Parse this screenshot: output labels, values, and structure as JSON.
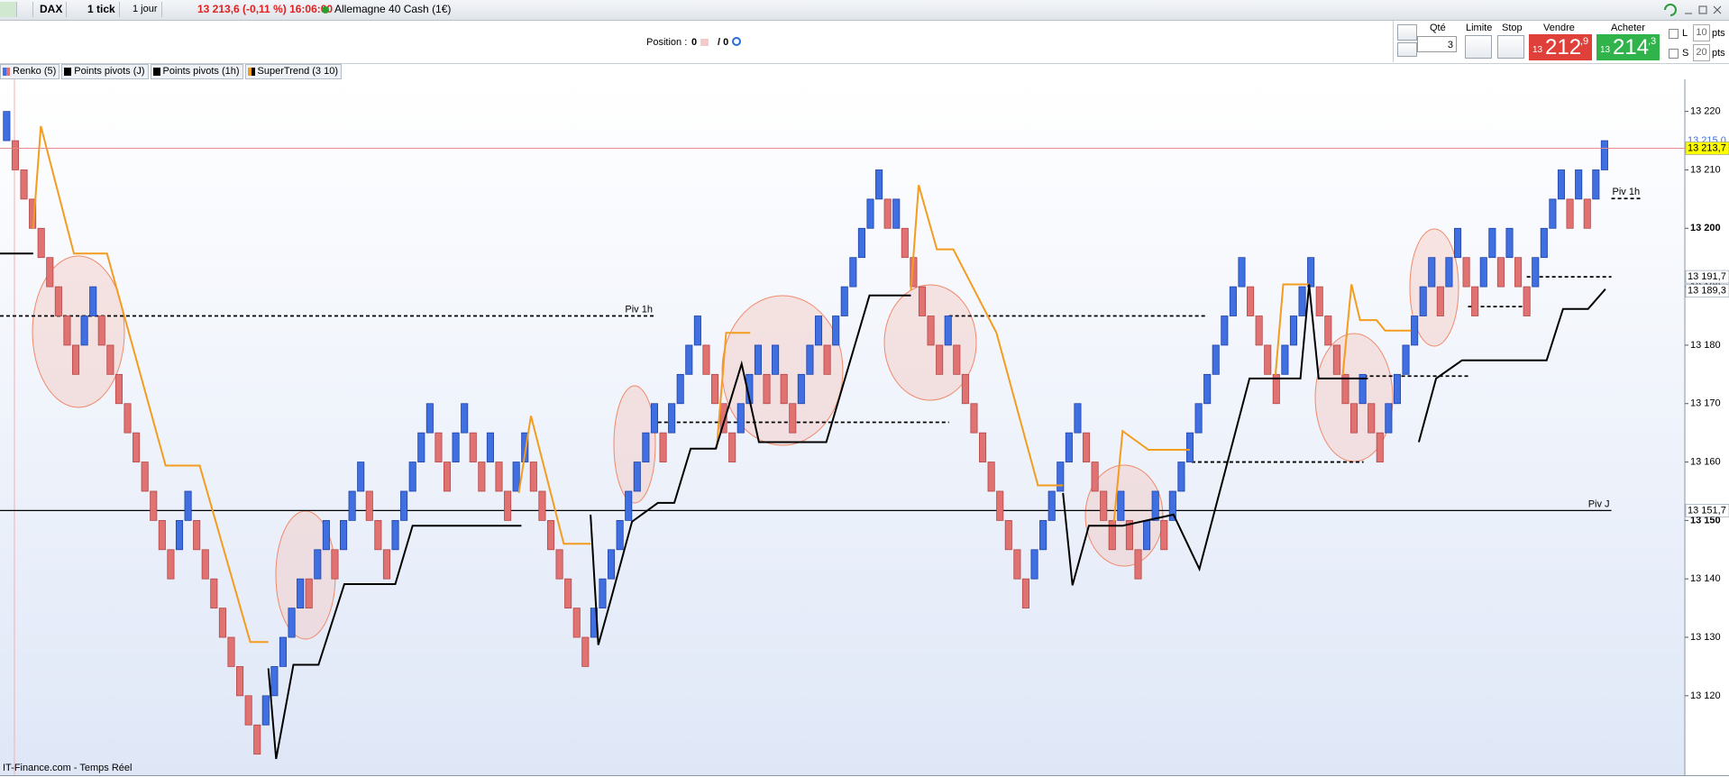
{
  "toolbar": {
    "symbol": "DAX",
    "interval": "1 tick",
    "period": "1 jour",
    "quote": "13 213,6 (-0,11 %) 16:06:00",
    "instrument": "Allemagne 40 Cash (1€)"
  },
  "position": {
    "label": "Position :",
    "value": "0",
    "total": "/ 0"
  },
  "order_panel": {
    "qty_label": "Qté",
    "qty": "3",
    "limit_label": "Limite",
    "stop_label": "Stop",
    "sell_label": "Vendre",
    "sell_prefix": "13",
    "sell_main": "212",
    "sell_decimal": ",9",
    "buy_label": "Acheter",
    "buy_prefix": "13",
    "buy_main": "214",
    "buy_decimal": ",3",
    "l_label": "L",
    "l_value": "10",
    "s_label": "S",
    "s_value": "20",
    "pts": "pts"
  },
  "indicators": [
    "Renko (5)",
    "Points pivots (J)",
    "Points pivots (1h)",
    "SuperTrend (3 10)"
  ],
  "footer": "IT-Finance.com - Temps Réel",
  "chart_data": {
    "type": "renko",
    "up_color": "#3f6fe0",
    "down_color": "#e07272",
    "open": [
      13215,
      13215,
      13210,
      13205,
      13200,
      13195,
      13190,
      13185,
      13180,
      13180,
      13185,
      13185,
      13180,
      13175,
      13170,
      13165,
      13160,
      13155,
      13150,
      13145,
      13145,
      13150,
      13150,
      13145,
      13140,
      13135,
      13130,
      13125,
      13120,
      13115,
      13115,
      13120,
      13125,
      13130,
      13135,
      13140,
      13140,
      13145,
      13145,
      13145,
      13150,
      13155,
      13155,
      13150,
      13145,
      13145,
      13150,
      13155,
      13160,
      13165,
      13165,
      13160,
      13160,
      13165,
      13165,
      13160,
      13160,
      13160,
      13155,
      13155,
      13160,
      13160,
      13155,
      13150,
      13145,
      13140,
      13135,
      13130,
      13130,
      13135,
      13140,
      13145,
      13150,
      13155,
      13160,
      13165,
      13165,
      13165,
      13170,
      13175,
      13180,
      13180,
      13175,
      13170,
      13165,
      13165,
      13170,
      13175,
      13175,
      13175,
      13175,
      13170,
      13170,
      13175,
      13180,
      13180,
      13180,
      13185,
      13190,
      13195,
      13200,
      13205,
      13205,
      13200,
      13200,
      13195,
      13190,
      13185,
      13180,
      13180,
      13180,
      13175,
      13170,
      13165,
      13160,
      13155,
      13150,
      13145,
      13140,
      13140,
      13145,
      13150,
      13155,
      13160,
      13165,
      13165,
      13160,
      13155,
      13150,
      13150,
      13150,
      13145,
      13145,
      13150,
      13150,
      13150,
      13155,
      13160,
      13165,
      13170,
      13175,
      13180,
      13185,
      13190,
      13190,
      13185,
      13180,
      13175,
      13175,
      13180,
      13185,
      13190,
      13190,
      13185,
      13180,
      13175,
      13170,
      13170,
      13170,
      13165,
      13165,
      13170,
      13175,
      13180,
      13185,
      13190,
      13190,
      13190,
      13195,
      13195,
      13190,
      13190,
      13195,
      13195,
      13195,
      13195,
      13190,
      13190,
      13195,
      13200,
      13205,
      13205,
      13205,
      13205,
      13205,
      13210
    ],
    "close": [
      13220,
      13210,
      13205,
      13200,
      13195,
      13190,
      13185,
      13180,
      13175,
      13185,
      13190,
      13180,
      13175,
      13170,
      13165,
      13160,
      13155,
      13150,
      13145,
      13140,
      13150,
      13155,
      13145,
      13140,
      13135,
      13130,
      13125,
      13120,
      13115,
      13110,
      13120,
      13125,
      13130,
      13135,
      13140,
      13135,
      13145,
      13150,
      13140,
      13150,
      13155,
      13160,
      13150,
      13145,
      13140,
      13150,
      13155,
      13160,
      13165,
      13170,
      13160,
      13155,
      13165,
      13170,
      13160,
      13155,
      13165,
      13155,
      13150,
      13160,
      13165,
      13155,
      13150,
      13145,
      13140,
      13135,
      13130,
      13125,
      13135,
      13140,
      13145,
      13150,
      13155,
      13160,
      13165,
      13170,
      13160,
      13170,
      13175,
      13180,
      13185,
      13175,
      13170,
      13165,
      13160,
      13170,
      13175,
      13180,
      13170,
      13180,
      13170,
      13165,
      13175,
      13180,
      13185,
      13175,
      13185,
      13190,
      13195,
      13200,
      13205,
      13210,
      13200,
      13205,
      13195,
      13190,
      13185,
      13180,
      13175,
      13185,
      13175,
      13170,
      13165,
      13160,
      13155,
      13150,
      13145,
      13140,
      13135,
      13145,
      13150,
      13155,
      13160,
      13165,
      13170,
      13160,
      13155,
      13150,
      13145,
      13155,
      13145,
      13140,
      13150,
      13155,
      13145,
      13155,
      13160,
      13165,
      13170,
      13175,
      13180,
      13185,
      13190,
      13195,
      13185,
      13180,
      13175,
      13170,
      13180,
      13185,
      13190,
      13195,
      13185,
      13180,
      13175,
      13170,
      13165,
      13175,
      13165,
      13160,
      13170,
      13175,
      13180,
      13185,
      13190,
      13195,
      13185,
      13195,
      13200,
      13190,
      13185,
      13195,
      13200,
      13190,
      13200,
      13190,
      13185,
      13195,
      13200,
      13205,
      13210,
      13200,
      13210,
      13200,
      13210,
      13215
    ],
    "xlim": [
      -0.77,
      194.3
    ],
    "ylim": [
      13106.4,
      13225.5
    ],
    "yticks": [
      {
        "value": 13120,
        "label": "13 120"
      },
      {
        "value": 13130,
        "label": "13 130"
      },
      {
        "value": 13140,
        "label": "13 140"
      },
      {
        "value": 13150,
        "label": "13 150"
      },
      {
        "value": 13160,
        "label": "13 160"
      },
      {
        "value": 13170,
        "label": "13 170"
      },
      {
        "value": 13180,
        "label": "13 180"
      },
      {
        "value": 13190,
        "label": "13 190"
      },
      {
        "value": 13200,
        "label": "13 200"
      },
      {
        "value": 13210,
        "label": "13 210"
      },
      {
        "value": 13220,
        "label": "13 220"
      }
    ],
    "supertrend": [
      {
        "color": "#f39c1f",
        "x": [
          3.07,
          3.96,
          7.79,
          11.62,
          18.4,
          22.35,
          28.2,
          30.3,
          null,
          59.3,
          60.7,
          64.5,
          67.6,
          null,
          82.2,
          83.3,
          86.1,
          null,
          104.7,
          105.6,
          107.7,
          109.6,
          114.6,
          119.4,
          122.3,
          null,
          128.2,
          129.2,
          132.2,
          137.0,
          null,
          146.9,
          147.8,
          150.8,
          null,
          154.7,
          155.7,
          156.7,
          158.6,
          159.6,
          162.6
        ],
        "values": [
          13200,
          13217.5,
          13195.7,
          13195.7,
          13159.4,
          13159.4,
          13129.2,
          13129.2,
          null,
          13154.7,
          13167.9,
          13146,
          13146,
          null,
          13162.3,
          13182.1,
          13182.1,
          null,
          13189.4,
          13207.4,
          13196.4,
          13196.4,
          13182.1,
          13156,
          13156,
          null,
          13149.8,
          13165.3,
          13162.1,
          13162.1,
          null,
          13174.9,
          13190.4,
          13190.4,
          null,
          13174.9,
          13190.4,
          13184.3,
          13184.3,
          13182.5,
          13182.5
        ]
      },
      {
        "color": "#000000",
        "x": [
          -0.77,
          3.07,
          null,
          30.3,
          31.2,
          33.2,
          36.1,
          39.1,
          45,
          47,
          59.6,
          null,
          67.6,
          68.5,
          69.5,
          72.4,
          75.4,
          77.3,
          79.2,
          82.1,
          85.1,
          87.1,
          94.9,
          99.9,
          104.7,
          null,
          122.3,
          123.4,
          125.3,
          129.2,
          135.1,
          138.1,
          143.9,
          149.8,
          150.8,
          151.9,
          157.6,
          null,
          163.5,
          165.5,
          168.5,
          178.3,
          180.2,
          183.1,
          185.1
        ],
        "values": [
          13195.7,
          13195.7,
          null,
          13124.7,
          13109.2,
          13125.3,
          13125.3,
          13139.1,
          13139.1,
          13149.1,
          13149.1,
          null,
          13151,
          13128.7,
          13134,
          13149.8,
          13153,
          13153,
          13162.3,
          13162.3,
          13176.8,
          13163.4,
          13163.4,
          13188.5,
          13188.5,
          null,
          13154.7,
          13138.9,
          13149.1,
          13149.1,
          13151,
          13141.7,
          13174.3,
          13174.3,
          13190.4,
          13174.3,
          13174.3,
          null,
          13163.4,
          13174.3,
          13177.4,
          13177.4,
          13186.2,
          13186.2,
          13189.6
        ]
      }
    ],
    "pivot_lines": [
      {
        "value": 13151.7,
        "x": [
          -0.77,
          185.8
        ],
        "style": "solid",
        "label": "Piv J"
      },
      {
        "value": 13185,
        "x": [
          -0.77,
          75
        ],
        "style": "dashed",
        "label": "Piv 1h"
      },
      {
        "value": 13166.8,
        "x": [
          75.4,
          109.1
        ],
        "style": "dashed"
      },
      {
        "value": 13185,
        "x": [
          109.1,
          138.8
        ],
        "style": "dashed"
      },
      {
        "value": 13160,
        "x": [
          137.2,
          157.1
        ],
        "style": "dashed"
      },
      {
        "value": 13174.7,
        "x": [
          157.1,
          169.2
        ],
        "style": "dashed"
      },
      {
        "value": 13186.6,
        "x": [
          169.2,
          176
        ],
        "style": "dashed"
      },
      {
        "value": 13191.7,
        "x": [
          176,
          185.8
        ],
        "style": "dashed"
      },
      {
        "value": 13205.1,
        "x": [
          185.8,
          189.3
        ],
        "style": "dashed",
        "label": "Piv 1h"
      }
    ],
    "axis_markers": [
      {
        "value": 13215.0,
        "label": "13 215,0",
        "color": "#3f6fe0"
      },
      {
        "value": 13213.7,
        "label": "13 213,7",
        "background": "#ffff00",
        "line_color": "#e98b8b"
      },
      {
        "value": 13191.7,
        "label": "13 191,7",
        "background": "#ffffff"
      },
      {
        "value": 13189.3,
        "label": "13 189,3",
        "background": "#ffffff"
      },
      {
        "value": 13151.7,
        "label": "13 151,7",
        "background": "#ffffff"
      }
    ]
  }
}
